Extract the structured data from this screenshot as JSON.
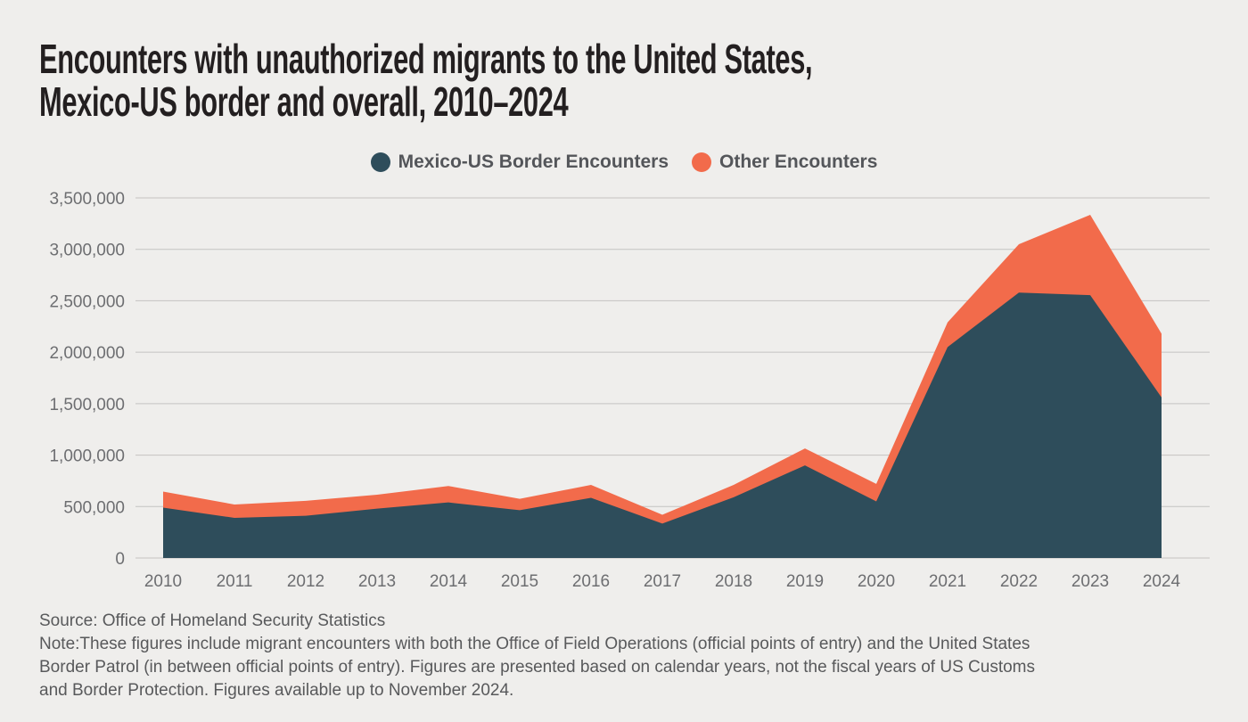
{
  "page": {
    "title_line1": "Encounters with unauthorized migrants to the United States,",
    "title_line2": "Mexico-US border and overall, 2010–2024"
  },
  "legend": {
    "items": [
      {
        "label": "Mexico-US Border Encounters",
        "color": "#2E4D5B"
      },
      {
        "label": "Other Encounters",
        "color": "#F26B4B"
      }
    ]
  },
  "chart_data": {
    "type": "area",
    "stacked": true,
    "title": "Encounters with unauthorized migrants to the United States, Mexico-US border and overall, 2010–2024",
    "xlabel": "",
    "ylabel": "",
    "categories": [
      2010,
      2011,
      2012,
      2013,
      2014,
      2015,
      2016,
      2017,
      2018,
      2019,
      2020,
      2021,
      2022,
      2023,
      2024
    ],
    "series": [
      {
        "name": "Mexico-US Border Encounters",
        "color": "#2E4D5B",
        "values": [
          490000,
          390000,
          410000,
          480000,
          540000,
          465000,
          585000,
          335000,
          590000,
          900000,
          550000,
          2050000,
          2580000,
          2555000,
          1560000
        ]
      },
      {
        "name": "Other Encounters",
        "color": "#F26B4B",
        "values": [
          155000,
          130000,
          145000,
          135000,
          160000,
          110000,
          125000,
          85000,
          120000,
          165000,
          170000,
          240000,
          470000,
          780000,
          620000
        ]
      }
    ],
    "ylim": [
      0,
      3500000
    ],
    "ytick_step": 500000,
    "ytick_labels": [
      "0",
      "500,000",
      "1,000,000",
      "1,500,000",
      "2,000,000",
      "2,500,000",
      "3,000,000",
      "3,500,000"
    ],
    "grid": true,
    "legend_position": "top"
  },
  "footer": {
    "source": "Source: Office of Homeland Security Statistics",
    "note_lines": [
      "Note:These figures include migrant encounters with both the Office of Field Operations (official points of entry) and the United States",
      "Border Patrol (in between official points of entry). Figures are presented based on calendar years, not the fiscal years of US Customs",
      "and Border Protection. Figures available up to November 2024."
    ]
  },
  "colors": {
    "background": "#EFEEEC",
    "grid": "#C4C3C1",
    "axis_text": "#6D6E71",
    "title_text": "#231F20",
    "footer_text": "#58595B",
    "legend_text": "#54565A"
  }
}
